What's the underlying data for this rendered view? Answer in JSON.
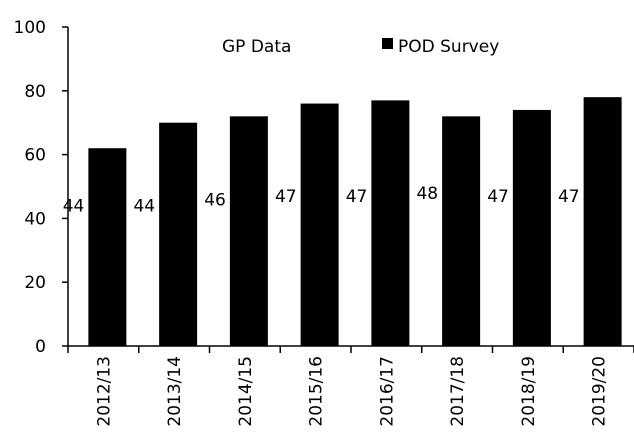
{
  "chart_data": {
    "type": "bar",
    "categories": [
      "2012/13",
      "2013/14",
      "2014/15",
      "2015/16",
      "2016/17",
      "2017/18",
      "2018/19",
      "2019/20"
    ],
    "series": [
      {
        "name": "GP Data",
        "values": [
          44,
          44,
          46,
          47,
          47,
          48,
          47,
          47
        ],
        "color": "#ffffff",
        "shown_as": "data-labels"
      },
      {
        "name": "POD Survey",
        "values": [
          62,
          70,
          72,
          76,
          77,
          72,
          74,
          78
        ],
        "color": "#000000",
        "shown_as": "bars"
      }
    ],
    "ylim": [
      0,
      100
    ],
    "yticks": [
      0,
      20,
      40,
      60,
      80,
      100
    ],
    "legend": {
      "position": "top-center"
    },
    "grid": false
  }
}
